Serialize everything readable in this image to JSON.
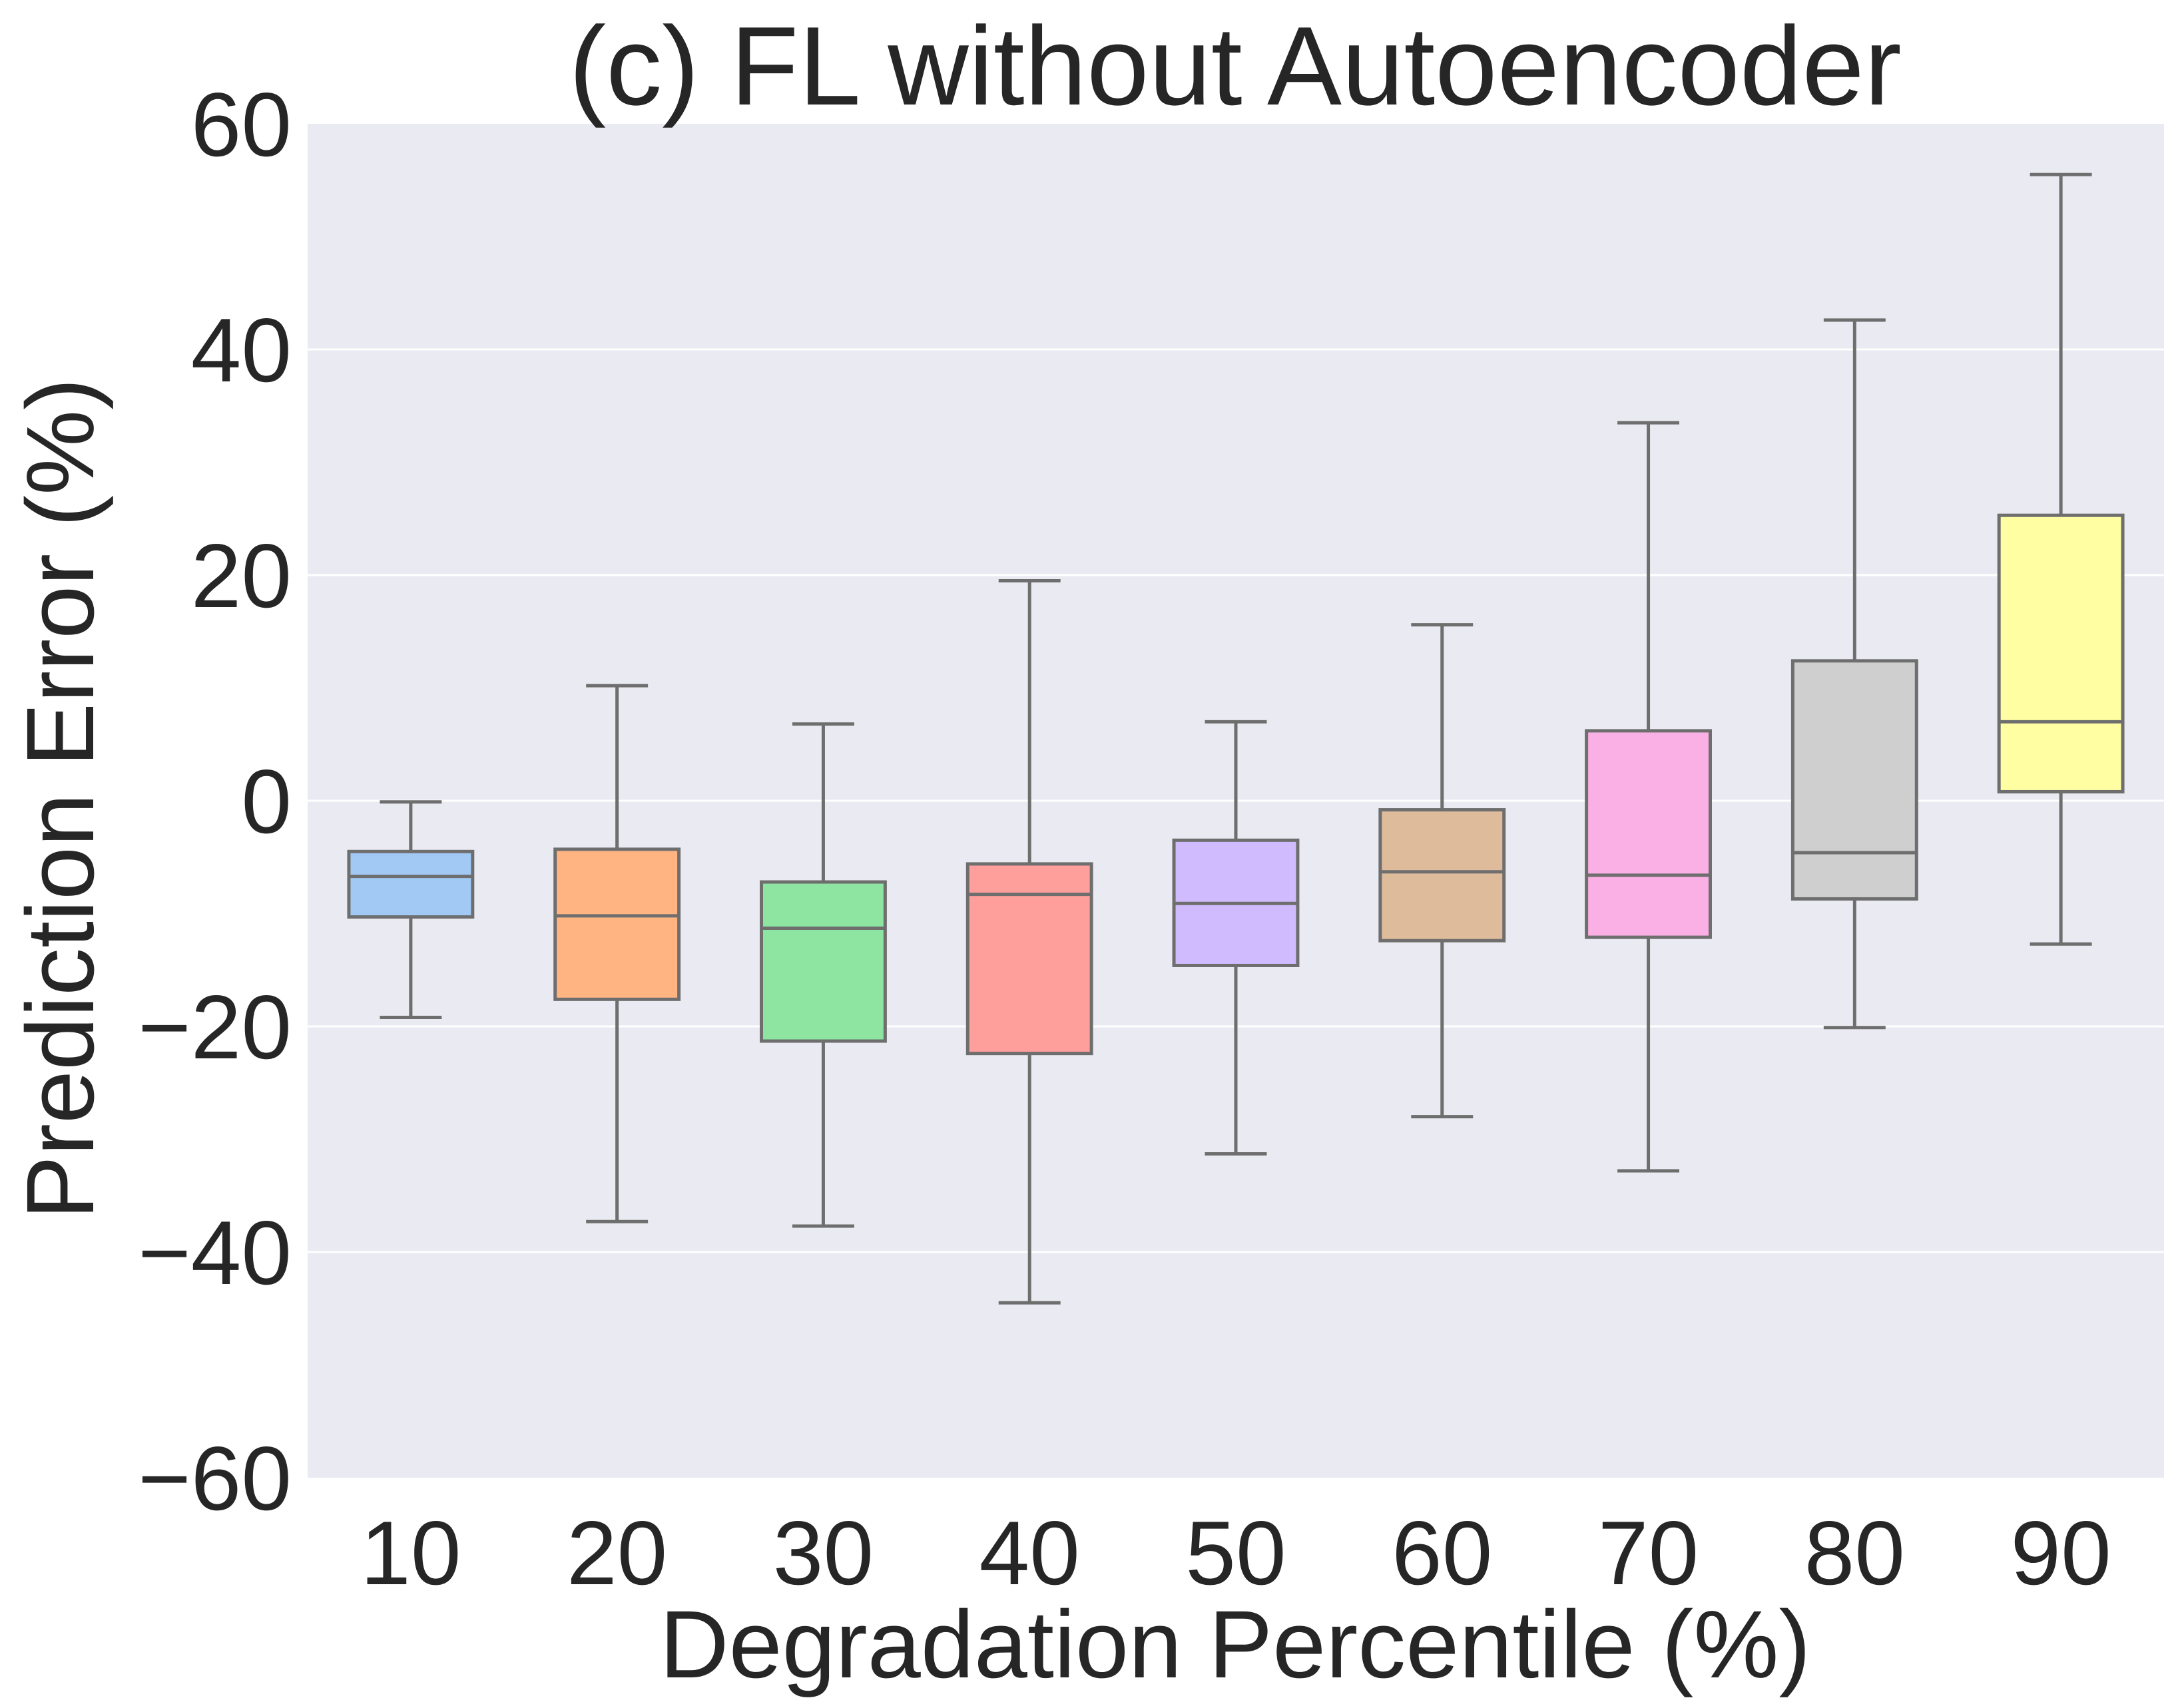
{
  "chart_data": {
    "type": "box",
    "title": "(c) FL without Autoencoder",
    "xlabel": "Degradation Percentile (%)",
    "ylabel": "Prediction Error (%)",
    "ylim": [
      -60,
      60
    ],
    "yticks": [
      -60,
      -40,
      -20,
      0,
      20,
      40,
      60
    ],
    "ytick_labels": [
      "−60",
      "−40",
      "−20",
      "0",
      "20",
      "40",
      "60"
    ],
    "grid": true,
    "categories": [
      "10",
      "20",
      "30",
      "40",
      "50",
      "60",
      "70",
      "80",
      "90"
    ],
    "boxes": [
      {
        "category": "10",
        "whisker_low": -19.2,
        "q1": -10.3,
        "median": -6.7,
        "q3": -4.5,
        "whisker_high": -0.1,
        "color": "#a1c9f4"
      },
      {
        "category": "20",
        "whisker_low": -37.3,
        "q1": -17.6,
        "median": -10.2,
        "q3": -4.3,
        "whisker_high": 10.2,
        "color": "#ffb482"
      },
      {
        "category": "30",
        "whisker_low": -37.7,
        "q1": -21.3,
        "median": -11.3,
        "q3": -7.2,
        "whisker_high": 6.8,
        "color": "#8de5a1"
      },
      {
        "category": "40",
        "whisker_low": -44.5,
        "q1": -22.4,
        "median": -8.3,
        "q3": -5.6,
        "whisker_high": 19.5,
        "color": "#ff9f9b"
      },
      {
        "category": "50",
        "whisker_low": -31.3,
        "q1": -14.6,
        "median": -9.1,
        "q3": -3.5,
        "whisker_high": 7.0,
        "color": "#d0bbff"
      },
      {
        "category": "60",
        "whisker_low": -28.0,
        "q1": -12.4,
        "median": -6.3,
        "q3": -0.8,
        "whisker_high": 15.6,
        "color": "#debb9b"
      },
      {
        "category": "70",
        "whisker_low": -32.8,
        "q1": -12.1,
        "median": -6.6,
        "q3": 6.2,
        "whisker_high": 33.5,
        "color": "#fab0e4"
      },
      {
        "category": "80",
        "whisker_low": -20.1,
        "q1": -8.7,
        "median": -4.6,
        "q3": 12.4,
        "whisker_high": 42.6,
        "color": "#cfcfcf"
      },
      {
        "category": "90",
        "whisker_low": -12.7,
        "q1": 0.8,
        "median": 7.0,
        "q3": 25.3,
        "whisker_high": 55.5,
        "color": "#fffea3"
      }
    ]
  },
  "colors": {
    "plot_background": "#eaeaf2",
    "grid": "#ffffff",
    "box_edge": "#6e6e6e",
    "text": "#262626"
  }
}
